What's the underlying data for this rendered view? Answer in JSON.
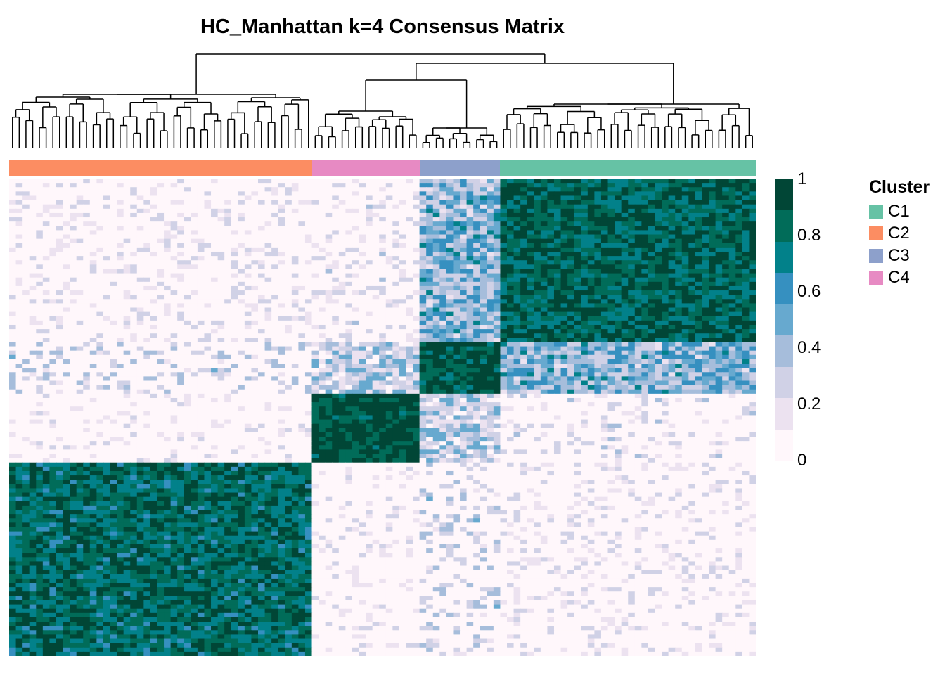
{
  "chart_data": {
    "type": "heatmap",
    "title": "HC_Manhattan k=4 Consensus Matrix",
    "value_range": [
      0,
      1
    ],
    "colorbar": {
      "ticks": [
        "0",
        "0.2",
        "0.4",
        "0.6",
        "0.8",
        "1"
      ],
      "colors": [
        "#FFF7FB",
        "#ECE2F0",
        "#D0D1E6",
        "#A6BDDB",
        "#67A9CF",
        "#3690C0",
        "#02818A",
        "#016C59",
        "#014636"
      ]
    },
    "legend": {
      "title": "Cluster",
      "items": [
        {
          "label": "C1",
          "color": "#66C2A5"
        },
        {
          "label": "C2",
          "color": "#FC8D62"
        },
        {
          "label": "C3",
          "color": "#8DA0CB"
        },
        {
          "label": "C4",
          "color": "#E78AC3"
        }
      ]
    },
    "column_order_clusters": [
      {
        "cluster": "C2",
        "count": 45
      },
      {
        "cluster": "C4",
        "count": 16
      },
      {
        "cluster": "C3",
        "count": 12
      },
      {
        "cluster": "C1",
        "count": 38
      }
    ],
    "row_blocks_top_to_bottom": [
      "C1",
      "C3",
      "C4",
      "C2"
    ],
    "block_mean_consensus": {
      "C1-C1": 0.85,
      "C3-C3": 0.92,
      "C4-C4": 0.95,
      "C2-C2": 0.82,
      "C1-C3": 0.45,
      "C1-C4": 0.1,
      "C1-C2": 0.08,
      "C3-C4": 0.3,
      "C3-C2": 0.2,
      "C4-C2": 0.02
    }
  }
}
